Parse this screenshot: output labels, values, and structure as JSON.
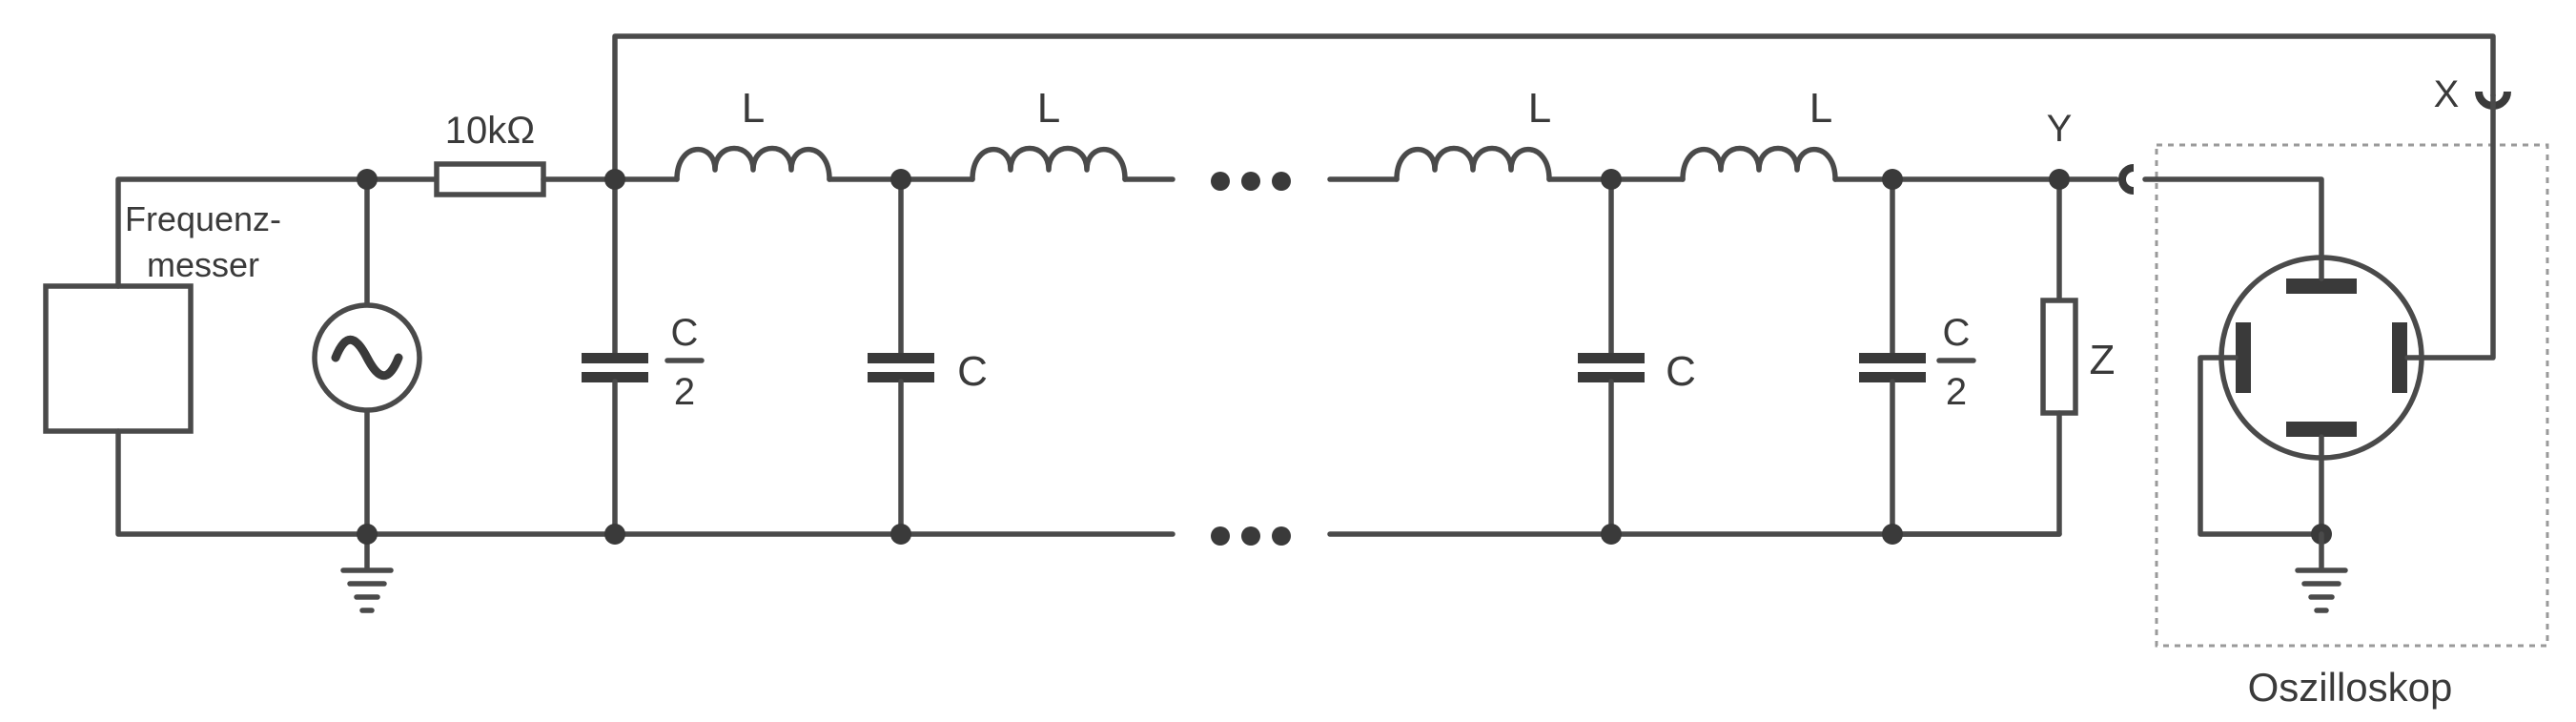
{
  "labels": {
    "frequency_meter_line1": "Frequenz-",
    "frequency_meter_line2": "messer",
    "resistor": "10kΩ",
    "inductor": "L",
    "capacitor": "C",
    "half_cap_num": "C",
    "half_cap_den": "2",
    "load": "Z",
    "x_input": "X",
    "y_input": "Y",
    "oscilloscope": "Oszilloskop"
  },
  "colors": {
    "wire": "#4a4a4a",
    "fill": "#3a3a3a",
    "dashed_box": "#9a9a9a",
    "background": "#ffffff"
  },
  "icons": [
    "ac-source-icon",
    "ground-icon",
    "resistor-icon",
    "inductor-icon",
    "capacitor-icon",
    "impedance-icon",
    "oscilloscope-tube-icon",
    "connector-jack-icon",
    "ellipsis-icon"
  ]
}
